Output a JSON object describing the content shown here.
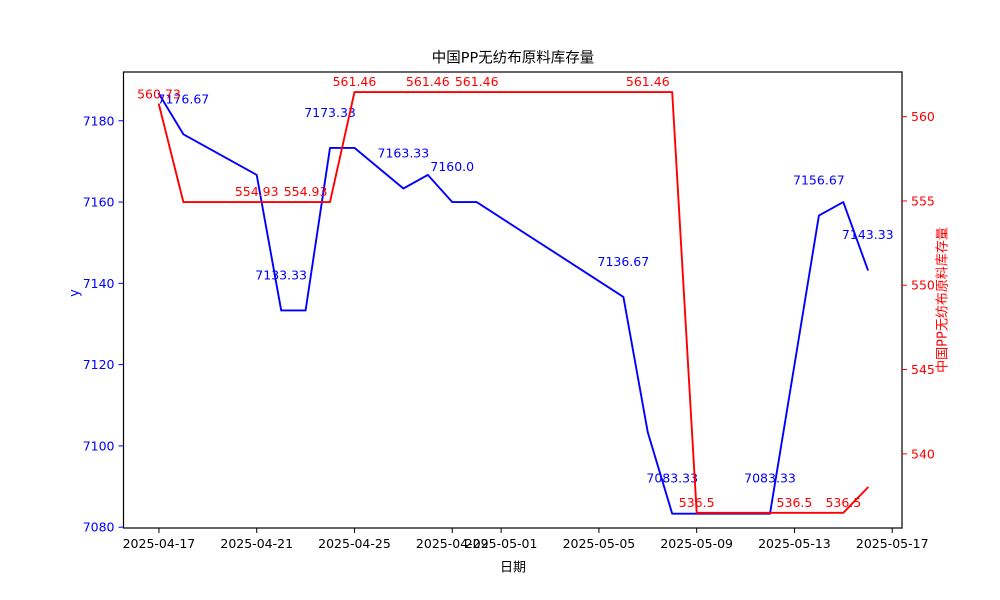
{
  "title": "中国PP无纺布原料库存量",
  "chart_data": {
    "type": "line",
    "title": "中国PP无纺布原料库存量",
    "xlabel": "日期",
    "grid": false,
    "legend": null,
    "x_dates": [
      "2025-04-17",
      "2025-04-18",
      "2025-04-21",
      "2025-04-22",
      "2025-04-23",
      "2025-04-24",
      "2025-04-25",
      "2025-04-27",
      "2025-04-28",
      "2025-04-29",
      "2025-04-30",
      "2025-05-06",
      "2025-05-07",
      "2025-05-08",
      "2025-05-09",
      "2025-05-12",
      "2025-05-13",
      "2025-05-14",
      "2025-05-15",
      "2025-05-16"
    ],
    "x_tick_labels": [
      "2025-04-17",
      "2025-04-21",
      "2025-04-25",
      "2025-04-29",
      "2025-05-01",
      "2025-05-05",
      "2025-05-09",
      "2025-05-13",
      "2025-05-17"
    ],
    "xlim_days_from_first": [
      -1.45,
      30.4
    ],
    "y_left": {
      "label": "y",
      "color": "#0000ff",
      "ticks": [
        7080,
        7100,
        7120,
        7140,
        7160,
        7180
      ],
      "lim": [
        7079.8,
        7192.0
      ]
    },
    "y_right": {
      "label": "中国PP无纺布原料库存量",
      "color": "#ff0000",
      "ticks": [
        540,
        545,
        550,
        555,
        560
      ],
      "lim": [
        535.6,
        562.65
      ]
    },
    "series": [
      {
        "name": "y",
        "axis": "left",
        "color": "#0000ff",
        "values": [
          7186.67,
          7176.67,
          7166.67,
          7133.33,
          7133.33,
          7173.33,
          7173.33,
          7163.33,
          7166.67,
          7160.0,
          7160.0,
          7136.67,
          7103.33,
          7083.33,
          7083.33,
          7083.33,
          7120.0,
          7156.67,
          7160.0,
          7143.33
        ],
        "label_dy": -31,
        "point_labels": [
          {
            "i": 1,
            "text": "7176.67"
          },
          {
            "i": 3,
            "text": "7133.33"
          },
          {
            "i": 5,
            "text": "7173.33"
          },
          {
            "i": 7,
            "text": "7163.33"
          },
          {
            "i": 9,
            "text": "7160.0"
          },
          {
            "i": 11,
            "text": "7136.67"
          },
          {
            "i": 13,
            "text": "7083.33"
          },
          {
            "i": 15,
            "text": "7083.33"
          },
          {
            "i": 17,
            "text": "7156.67"
          },
          {
            "i": 19,
            "text": "7143.33"
          }
        ]
      },
      {
        "name": "中国PP无纺布原料库存量",
        "axis": "right",
        "color": "#ff0000",
        "values": [
          560.73,
          554.93,
          554.93,
          554.93,
          554.93,
          554.93,
          561.46,
          561.46,
          561.46,
          561.46,
          561.46,
          561.46,
          561.46,
          561.46,
          536.5,
          536.5,
          536.5,
          536.5,
          536.5,
          538.0
        ],
        "label_dy": -6,
        "point_labels": [
          {
            "i": 0,
            "text": "560.73"
          },
          {
            "i": 2,
            "text": "554.93"
          },
          {
            "i": 4,
            "text": "554.93"
          },
          {
            "i": 6,
            "text": "561.46"
          },
          {
            "i": 8,
            "text": "561.46"
          },
          {
            "i": 10,
            "text": "561.46"
          },
          {
            "i": 12,
            "text": "561.46"
          },
          {
            "i": 14,
            "text": "536.5"
          },
          {
            "i": 16,
            "text": "536.5"
          },
          {
            "i": 18,
            "text": "536.5"
          }
        ]
      }
    ]
  }
}
